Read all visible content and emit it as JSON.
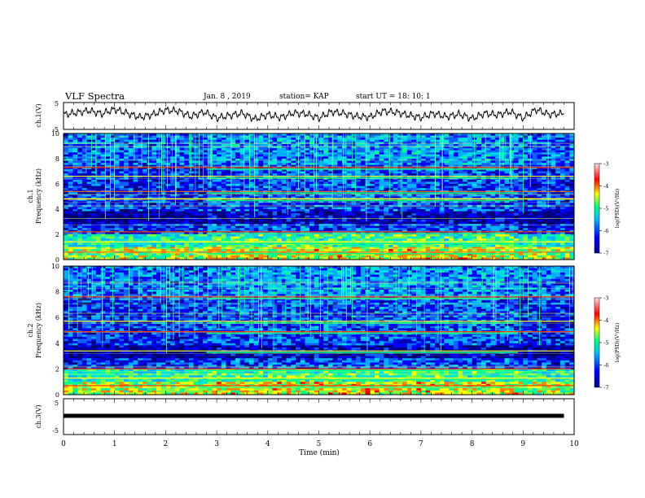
{
  "header": {
    "title": "VLF Spectra",
    "date": "Jan. 8 , 2019",
    "station": "station= KAP",
    "start_ut": "start UT = 18: 10: 1"
  },
  "chart_data": [
    {
      "type": "line",
      "panel": "ch1-waveform",
      "ylabel": "ch.1(V)",
      "ylim": [
        -5,
        5
      ],
      "yticks": [
        "5",
        "-5"
      ],
      "xlim": [
        0,
        10
      ],
      "series": [
        {
          "x": [
            0,
            0.25,
            0.5,
            0.75,
            1,
            1.25,
            1.5,
            1.75,
            2,
            2.25,
            2.5,
            2.75,
            3,
            3.25,
            3.5,
            3.75,
            4,
            4.25,
            4.5,
            4.75,
            5,
            5.25,
            5.5,
            5.75,
            6,
            6.25,
            6.5,
            6.75,
            7,
            7.25,
            7.5,
            7.75,
            8,
            8.25,
            8.5,
            8.75,
            9,
            9.25,
            9.5,
            9.8
          ],
          "y": [
            0.5,
            1.2,
            2.0,
            0.8,
            2.5,
            1.0,
            -0.5,
            0.6,
            2.2,
            1.8,
            -0.2,
            1.5,
            -0.8,
            0.2,
            1.0,
            -1.2,
            0.5,
            -0.6,
            1.1,
            0.8,
            -0.8,
            1.6,
            0.9,
            -0.2,
            -0.4,
            1.8,
            1.4,
            0.3,
            -0.6,
            1.0,
            -0.3,
            0.7,
            -1.0,
            1.0,
            0.4,
            1.6,
            -0.8,
            2.4,
            0.6,
            0.9
          ]
        }
      ],
      "color": "#000000"
    },
    {
      "type": "heatmap",
      "panel": "ch1-spectrogram",
      "ylabel": "ch.1 Frequency (kHz)",
      "ylim": [
        0,
        10
      ],
      "yticks": [
        "10",
        "8",
        "6",
        "4",
        "2",
        "0"
      ],
      "xlim": [
        0,
        10
      ],
      "colorbar": {
        "label": "log(PSD)(V²/Hz)",
        "range": [
          -7,
          -3
        ],
        "ticks": [
          "-3",
          "-4",
          "-5",
          "-6",
          "-7"
        ]
      },
      "strong_bands_khz": [
        0.6,
        1.4,
        2.2,
        4.8,
        5.4,
        6.6,
        7.3
      ]
    },
    {
      "type": "heatmap",
      "panel": "ch2-spectrogram",
      "ylabel": "ch.2 Frequency (kHz)",
      "ylim": [
        0,
        10
      ],
      "yticks": [
        "10",
        "8",
        "6",
        "4",
        "2",
        "0"
      ],
      "xlim": [
        0,
        10
      ],
      "colorbar": {
        "label": "log(PSD)(V²/Hz)",
        "range": [
          -7,
          -3
        ],
        "ticks": [
          "-3",
          "-4",
          "-5",
          "-6",
          "-7"
        ]
      },
      "strong_bands_khz": [
        0.7,
        1.3,
        2.0,
        3.4,
        4.9,
        5.7,
        7.6
      ]
    },
    {
      "type": "line",
      "panel": "ch3-waveform",
      "ylabel": "ch.3(V)",
      "ylim": [
        -5,
        5
      ],
      "yticks": [
        "5",
        "-5"
      ],
      "xlim": [
        0,
        10
      ],
      "series": [
        {
          "x": [
            0,
            9.8
          ],
          "y": [
            0,
            0
          ]
        }
      ],
      "color": "#000000"
    }
  ],
  "xaxis": {
    "label": "Time (min)",
    "ticks": [
      "0",
      "1",
      "2",
      "3",
      "4",
      "5",
      "6",
      "7",
      "8",
      "9",
      "10"
    ],
    "range": [
      0,
      10
    ]
  },
  "colors": {
    "psd_low": "#00008b",
    "psd_mid": "#00ff80",
    "psd_high": "#ff0000",
    "waveform": "#000000"
  }
}
